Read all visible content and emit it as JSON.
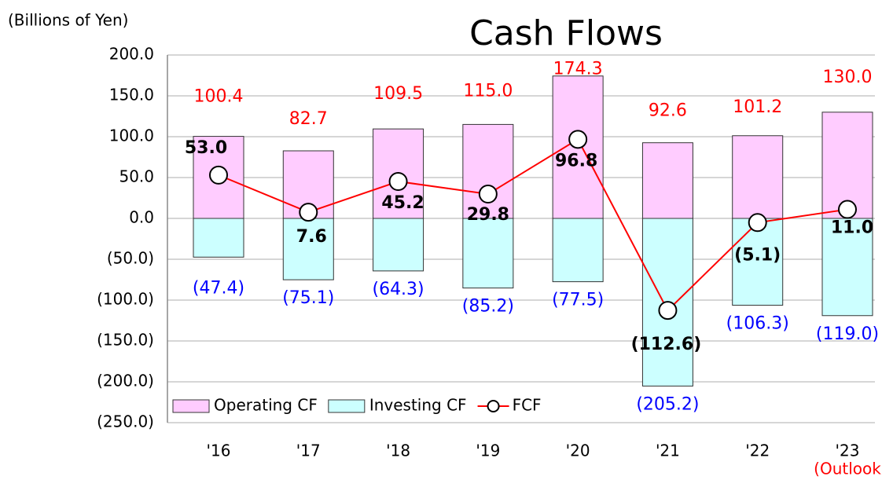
{
  "chart_data": {
    "type": "bar-line",
    "title": "Cash Flows",
    "y_axis_label": "(Billions of Yen)",
    "annotation": "(Outlook",
    "categories": [
      "'16",
      "'17",
      "'18",
      "'19",
      "'20",
      "'21",
      "'22",
      "'23"
    ],
    "ylim": [
      -250,
      200
    ],
    "yticks": [
      {
        "value": 200,
        "label": "200.0"
      },
      {
        "value": 150,
        "label": "150.0"
      },
      {
        "value": 100,
        "label": "100.0"
      },
      {
        "value": 50,
        "label": "50.0"
      },
      {
        "value": 0,
        "label": "0.0"
      },
      {
        "value": -50,
        "label": "(50.0)"
      },
      {
        "value": -100,
        "label": "(100.0)"
      },
      {
        "value": -150,
        "label": "(150.0)"
      },
      {
        "value": -200,
        "label": "(200.0)"
      },
      {
        "value": -250,
        "label": "(250.0)"
      }
    ],
    "grid": true,
    "legend": "lower left",
    "series": [
      {
        "name": "Operating CF",
        "kind": "bar",
        "color": "#ffccff",
        "label_color": "#ff0000",
        "values": [
          100.4,
          82.7,
          109.5,
          115.0,
          174.3,
          92.6,
          101.2,
          130.0
        ],
        "value_labels": [
          "100.4",
          "82.7",
          "109.5",
          "115.0",
          "174.3",
          "92.6",
          "101.2",
          "130.0"
        ]
      },
      {
        "name": "Investing CF",
        "kind": "bar",
        "color": "#ccffff",
        "label_color": "#0000ff",
        "values": [
          -47.4,
          -75.1,
          -64.3,
          -85.2,
          -77.5,
          -205.2,
          -106.3,
          -119.0
        ],
        "value_labels": [
          "(47.4)",
          "(75.1)",
          "(64.3)",
          "(85.2)",
          "(77.5)",
          "(205.2)",
          "(106.3)",
          "(119.0)"
        ]
      },
      {
        "name": "FCF",
        "kind": "line",
        "color": "#ff0000",
        "label_color": "#000000",
        "values": [
          53.0,
          7.6,
          45.2,
          29.8,
          96.8,
          -112.6,
          -5.1,
          11.0
        ],
        "value_labels": [
          "53.0",
          "7.6",
          "45.2",
          "29.8",
          "96.8",
          "(112.6)",
          "(5.1)",
          "11.0"
        ]
      }
    ]
  }
}
